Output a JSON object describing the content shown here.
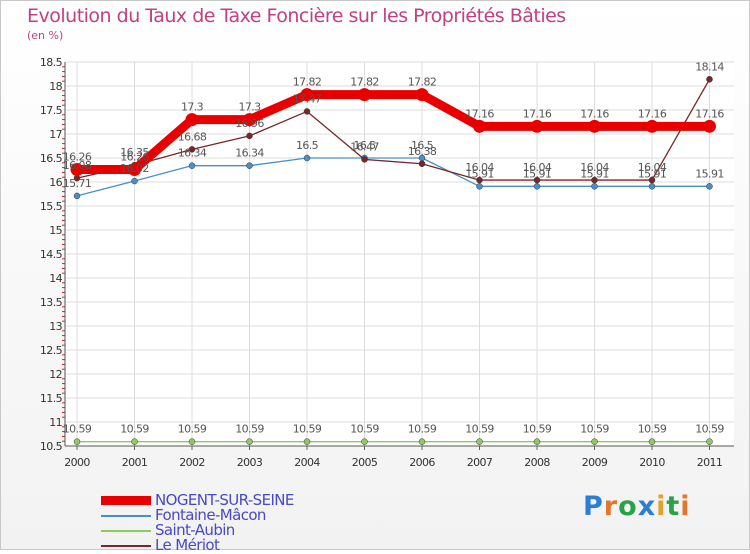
{
  "title": "Evolution du Taux de Taxe Foncière sur les Propriétés Bâties",
  "unit_label": "(en %)",
  "logo": {
    "text": "Proxiti",
    "letters": [
      {
        "ch": "P",
        "color": "#2a7fd0"
      },
      {
        "ch": "r",
        "color": "#e2762b"
      },
      {
        "ch": "o",
        "color": "#2aa24a"
      },
      {
        "ch": "x",
        "color": "#2a7fd0"
      },
      {
        "ch": "i",
        "color": "#e2a32b"
      },
      {
        "ch": "t",
        "color": "#2aa24a"
      },
      {
        "ch": "i",
        "color": "#e2762b"
      }
    ]
  },
  "chart_data": {
    "type": "line",
    "title": "Evolution du Taux de Taxe Foncière sur les Propriétés Bâties",
    "ylabel": "(en %)",
    "xlabel": "",
    "ylim": [
      10.5,
      18.5
    ],
    "y_ticks": [
      "10.5",
      "11",
      "11.5",
      "12",
      "12.5",
      "13",
      "13.5",
      "14",
      "14.5",
      "15",
      "15.5",
      "16",
      "16.5",
      "17",
      "17.5",
      "18",
      "18.5"
    ],
    "categories": [
      "2000",
      "2001",
      "2002",
      "2003",
      "2004",
      "2005",
      "2006",
      "2007",
      "2008",
      "2009",
      "2010",
      "2011"
    ],
    "grid": true,
    "legend": "bottom-left",
    "series": [
      {
        "name": "NOGENT-SUR-SEINE",
        "color": "#e80000",
        "values": [
          16.26,
          16.26,
          17.3,
          17.3,
          17.82,
          17.82,
          17.82,
          17.16,
          17.16,
          17.16,
          17.16,
          17.16
        ],
        "labels": [
          "16.26",
          "16.26",
          "17.3",
          "17.3",
          "17.82",
          "17.82",
          "17.82",
          "17.16",
          "17.16",
          "17.16",
          "17.16",
          "17.16"
        ]
      },
      {
        "name": "Fontaine-Mâcon",
        "color": "#4a90c8",
        "values": [
          15.71,
          16.02,
          16.34,
          16.34,
          16.5,
          16.5,
          16.5,
          15.91,
          15.91,
          15.91,
          15.91,
          15.91
        ],
        "labels": [
          "15.71",
          "16.02",
          "16.34",
          "16.34",
          "16.5",
          "16.5",
          "16.5",
          "15.91",
          "15.91",
          "15.91",
          "15.91",
          "15.91"
        ]
      },
      {
        "name": "Saint-Aubin",
        "color": "#8ccc5a",
        "values": [
          10.59,
          10.59,
          10.59,
          10.59,
          10.59,
          10.59,
          10.59,
          10.59,
          10.59,
          10.59,
          10.59,
          10.59
        ],
        "labels": [
          "10.59",
          "10.59",
          "10.59",
          "10.59",
          "10.59",
          "10.59",
          "10.59",
          "10.59",
          "10.59",
          "10.59",
          "10.59",
          "10.59"
        ]
      },
      {
        "name": "Le Mériot",
        "color": "#7a2626",
        "values": [
          16.08,
          16.35,
          16.68,
          16.96,
          17.47,
          16.47,
          16.38,
          16.04,
          16.04,
          16.04,
          16.04,
          18.14
        ],
        "labels": [
          "16.08",
          "16.35",
          "16.68",
          "16.96",
          "17.47",
          "16.47",
          "16.38",
          "16.04",
          "16.04",
          "16.04",
          "16.04",
          "18.14"
        ]
      }
    ]
  }
}
